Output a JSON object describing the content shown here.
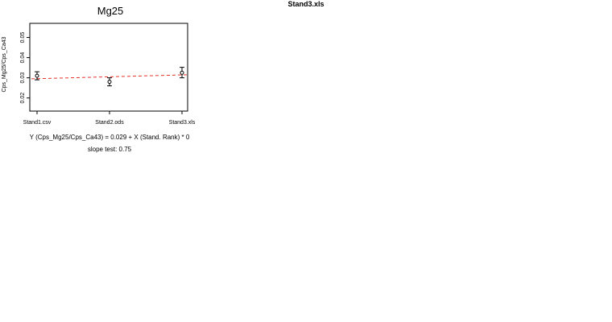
{
  "page": {
    "title": "Stand3.xls"
  },
  "chart_data": {
    "type": "scatter",
    "title": "Mg25",
    "ylabel": "Cps_Mg25/Cps_Ca43",
    "xlabel": "",
    "categories": [
      "Stand1.csv",
      "Stand2.ods",
      "Stand3.xls"
    ],
    "ylim": [
      0.0135,
      0.057
    ],
    "yticks": [
      0.02,
      0.03,
      0.04,
      0.05
    ],
    "ytick_labels": [
      "0.02",
      "0.03",
      "0.04",
      "0.05"
    ],
    "series": [
      {
        "values": [
          0.031,
          0.028,
          0.0325
        ],
        "error_low": [
          0.029,
          0.026,
          0.03
        ],
        "error_high": [
          0.033,
          0.03,
          0.0352
        ]
      }
    ],
    "fit_line": {
      "start": 0.0295,
      "end": 0.0315,
      "color": "#e8322b",
      "style": "dashed"
    },
    "grid": false,
    "annotations": {
      "equation": "Y (Cps_Mg25/Cps_Ca43) = 0.029 + X (Stand. Rank) * 0",
      "slope_test": "slope test: 0.75"
    }
  }
}
